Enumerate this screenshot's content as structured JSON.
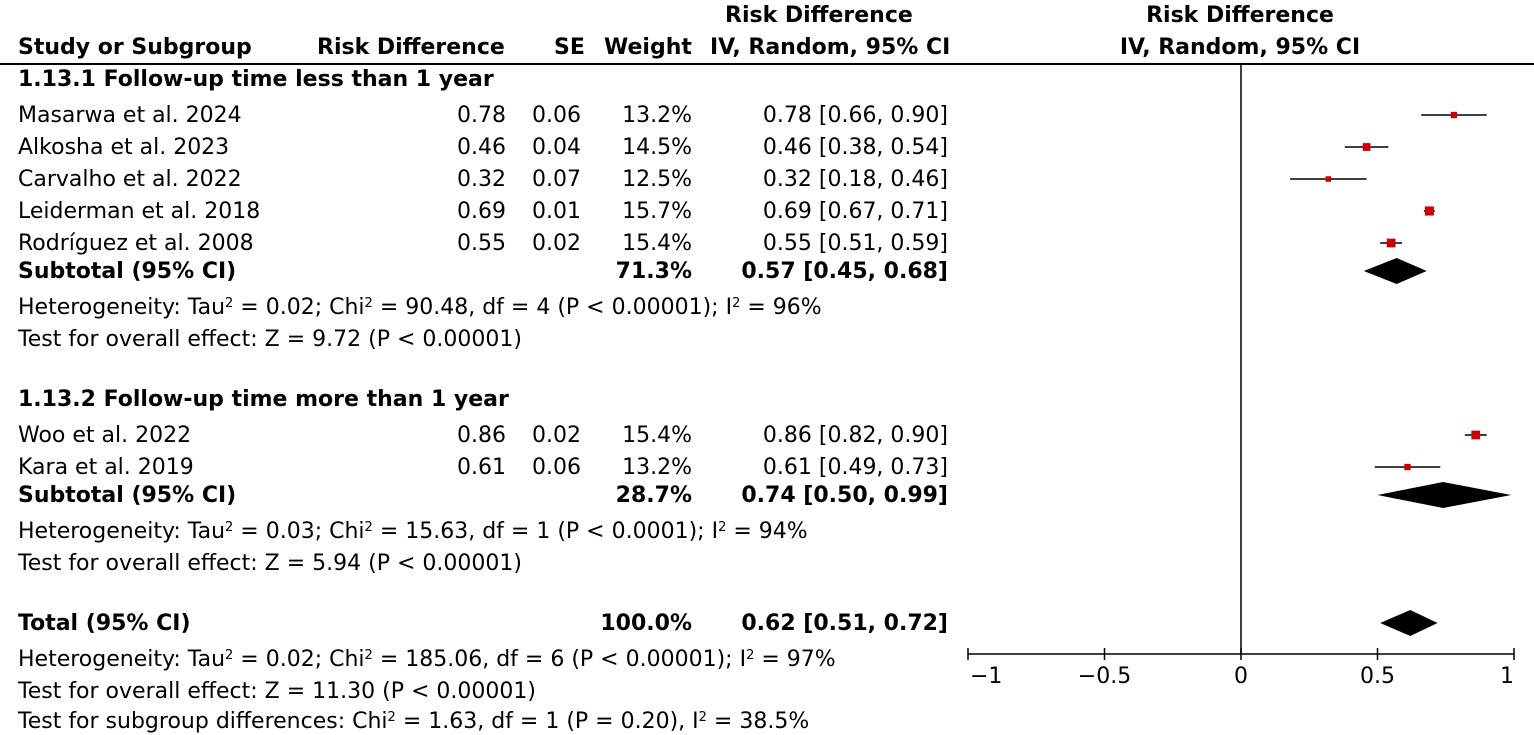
{
  "header": {
    "col_study": "Study or Subgroup",
    "col_rd": "Risk Difference",
    "col_se": "SE",
    "col_weight": "Weight",
    "col_ci_title": "Risk Difference",
    "col_ci_sub": "IV, Random, 95% CI",
    "plot_title": "Risk Difference",
    "plot_sub": "IV, Random, 95% CI"
  },
  "groups": [
    {
      "title": "1.13.1 Follow-up time less than 1 year",
      "studies": [
        {
          "name": "Masarwa et al. 2024",
          "rd": "0.78",
          "se": "0.06",
          "weight": "13.2%",
          "ci": "0.78 [0.66, 0.90]"
        },
        {
          "name": "Alkosha et al. 2023",
          "rd": "0.46",
          "se": "0.04",
          "weight": "14.5%",
          "ci": "0.46 [0.38, 0.54]"
        },
        {
          "name": "Carvalho et al. 2022",
          "rd": "0.32",
          "se": "0.07",
          "weight": "12.5%",
          "ci": "0.32 [0.18, 0.46]"
        },
        {
          "name": "Leiderman et al. 2018",
          "rd": "0.69",
          "se": "0.01",
          "weight": "15.7%",
          "ci": "0.69 [0.67, 0.71]"
        },
        {
          "name": "Rodríguez et al. 2008",
          "rd": "0.55",
          "se": "0.02",
          "weight": "15.4%",
          "ci": "0.55 [0.51, 0.59]"
        }
      ],
      "subtotal": {
        "label": "Subtotal (95% CI)",
        "weight": "71.3%",
        "ci": "0.57 [0.45, 0.68]"
      },
      "het": {
        "a": "Heterogeneity: Tau",
        "b": " = 0.02; Chi",
        "c": " = 90.48, df = 4 (P < 0.00001); I",
        "d": " = 96%"
      },
      "effect": "Test for overall effect: Z = 9.72 (P < 0.00001)"
    },
    {
      "title": "1.13.2 Follow-up time more than 1 year",
      "studies": [
        {
          "name": "Woo et al. 2022",
          "rd": "0.86",
          "se": "0.02",
          "weight": "15.4%",
          "ci": "0.86 [0.82, 0.90]"
        },
        {
          "name": "Kara et al. 2019",
          "rd": "0.61",
          "se": "0.06",
          "weight": "13.2%",
          "ci": "0.61 [0.49, 0.73]"
        }
      ],
      "subtotal": {
        "label": "Subtotal (95% CI)",
        "weight": "28.7%",
        "ci": "0.74 [0.50, 0.99]"
      },
      "het": {
        "a": "Heterogeneity: Tau",
        "b": " = 0.03; Chi",
        "c": " = 15.63, df = 1 (P < 0.0001); I",
        "d": " = 94%"
      },
      "effect": "Test for overall effect: Z = 5.94 (P < 0.00001)"
    }
  ],
  "total": {
    "label": "Total (95% CI)",
    "weight": "100.0%",
    "ci": "0.62 [0.51, 0.72]",
    "het": {
      "a": "Heterogeneity: Tau",
      "b": " = 0.02; Chi",
      "c": " = 185.06, df = 6 (P < 0.00001); I",
      "d": " = 97%"
    },
    "effect": "Test for overall effect: Z = 11.30 (P < 0.00001)",
    "subgroup": {
      "a": "Test for subgroup differences: Chi",
      "b": " = 1.63, df = 1 (P = 0.20), I",
      "c": " = 38.5%"
    },
    "sup": "2"
  },
  "axis": {
    "ticks": [
      "−1",
      "−0.5",
      "0",
      "0.5",
      "1"
    ]
  },
  "colors": {
    "study_marker": "#cc0000",
    "diamond": "#000000",
    "line": "#000000"
  },
  "chart_data": {
    "type": "forest",
    "xlim": [
      -1,
      1
    ],
    "tick_values": [
      -1,
      -0.5,
      0,
      0.5,
      1
    ],
    "tick_labels": [
      "−1",
      "−0.5",
      "0",
      "0.5",
      "1"
    ],
    "studies": [
      {
        "name": "Masarwa et al. 2024",
        "est": 0.78,
        "lo": 0.66,
        "hi": 0.9,
        "weight": 13.2
      },
      {
        "name": "Alkosha et al. 2023",
        "est": 0.46,
        "lo": 0.38,
        "hi": 0.54,
        "weight": 14.5
      },
      {
        "name": "Carvalho et al. 2022",
        "est": 0.32,
        "lo": 0.18,
        "hi": 0.46,
        "weight": 12.5
      },
      {
        "name": "Leiderman et al. 2018",
        "est": 0.69,
        "lo": 0.67,
        "hi": 0.71,
        "weight": 15.7
      },
      {
        "name": "Rodríguez et al. 2008",
        "est": 0.55,
        "lo": 0.51,
        "hi": 0.59,
        "weight": 15.4
      },
      {
        "name": "Woo et al. 2022",
        "est": 0.86,
        "lo": 0.82,
        "hi": 0.9,
        "weight": 15.4
      },
      {
        "name": "Kara et al. 2019",
        "est": 0.61,
        "lo": 0.49,
        "hi": 0.73,
        "weight": 13.2
      }
    ],
    "diamonds": [
      {
        "name": "Subtotal 1.13.1",
        "est": 0.57,
        "lo": 0.45,
        "hi": 0.68
      },
      {
        "name": "Subtotal 1.13.2",
        "est": 0.74,
        "lo": 0.5,
        "hi": 0.99
      },
      {
        "name": "Total",
        "est": 0.62,
        "lo": 0.51,
        "hi": 0.72
      }
    ]
  }
}
